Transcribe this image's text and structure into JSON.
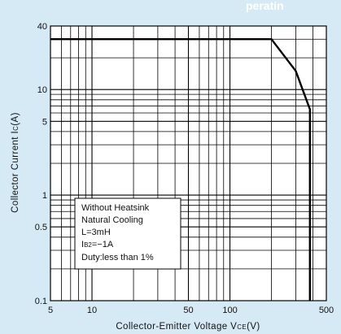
{
  "chart_data": {
    "type": "line",
    "title_fragment": "peratin",
    "xlabel": "Collector-Emitter Voltage V",
    "xlabel_sub": "CE",
    "xlabel_unit": "(V)",
    "ylabel": "Collector Current I",
    "ylabel_sub": "C",
    "ylabel_unit": "(A)",
    "x_scale": "log",
    "y_scale": "log",
    "xlim": [
      5,
      500
    ],
    "ylim": [
      0.1,
      40
    ],
    "grid": true,
    "x_ticks": [
      {
        "value": 5,
        "label": "5"
      },
      {
        "value": 10,
        "label": "10"
      },
      {
        "value": 50,
        "label": "50"
      },
      {
        "value": 100,
        "label": "100"
      },
      {
        "value": 500,
        "label": "500"
      }
    ],
    "y_ticks": [
      {
        "value": 0.1,
        "label": "0.1"
      },
      {
        "value": 0.5,
        "label": "0.5"
      },
      {
        "value": 1,
        "label": "1"
      },
      {
        "value": 5,
        "label": "5"
      },
      {
        "value": 10,
        "label": "10"
      },
      {
        "value": 40,
        "label": "40"
      }
    ],
    "series": [
      {
        "x": [
          5,
          200,
          300,
          380,
          380
        ],
        "y": [
          30,
          30,
          15,
          6.5,
          0.1
        ]
      }
    ],
    "annotation": {
      "line1": "Without Heatsink",
      "line2": "Natural Cooling",
      "line3": "L=3mH",
      "line4_main": "I",
      "line4_sub": "B2",
      "line4_rest": "=−1A",
      "line5": "Duty:less than 1%"
    },
    "colors": {
      "background": "#d6eaf6",
      "plot_area": "#ffffff",
      "line": "#000000"
    }
  }
}
